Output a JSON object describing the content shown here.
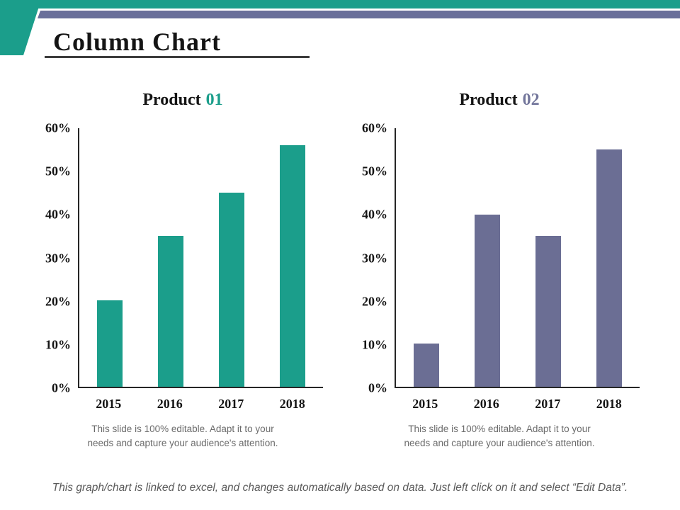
{
  "header": {
    "title": "Column Chart",
    "accent_teal": "#1b9e8b",
    "accent_purple": "#6a6f9a"
  },
  "charts": [
    {
      "title_prefix": "Product",
      "title_number": "01",
      "number_color": "#1b9e8b",
      "caption": {
        "line1": "This slide is 100% editable. Adapt it to your",
        "line2": "needs and capture your audience's attention."
      }
    },
    {
      "title_prefix": "Product",
      "title_number": "02",
      "number_color": "#73769b",
      "caption": {
        "line1": "This slide is 100% editable. Adapt it to your",
        "line2": "needs and capture your audience's attention."
      }
    }
  ],
  "chart_data": [
    {
      "type": "bar",
      "title": "Product 01",
      "categories": [
        "2015",
        "2016",
        "2017",
        "2018"
      ],
      "values": [
        20,
        35,
        45,
        56
      ],
      "value_unit": "%",
      "bar_color": "#1b9e8b",
      "ylim": [
        0,
        60
      ],
      "ytick_values": [
        60,
        50,
        40,
        30,
        20,
        10,
        0
      ],
      "ytick_suffix": "%",
      "grid": false,
      "legend": "none"
    },
    {
      "type": "bar",
      "title": "Product 02",
      "categories": [
        "2015",
        "2016",
        "2017",
        "2018"
      ],
      "values": [
        10,
        40,
        35,
        55
      ],
      "value_unit": "%",
      "bar_color": "#6b6e94",
      "ylim": [
        0,
        60
      ],
      "ytick_values": [
        60,
        50,
        40,
        30,
        20,
        10,
        0
      ],
      "ytick_suffix": "%",
      "grid": false,
      "legend": "none"
    }
  ],
  "footer": {
    "text": "This graph/chart is linked to excel, and changes automatically based on data. Just left click on it and select “Edit Data”."
  }
}
